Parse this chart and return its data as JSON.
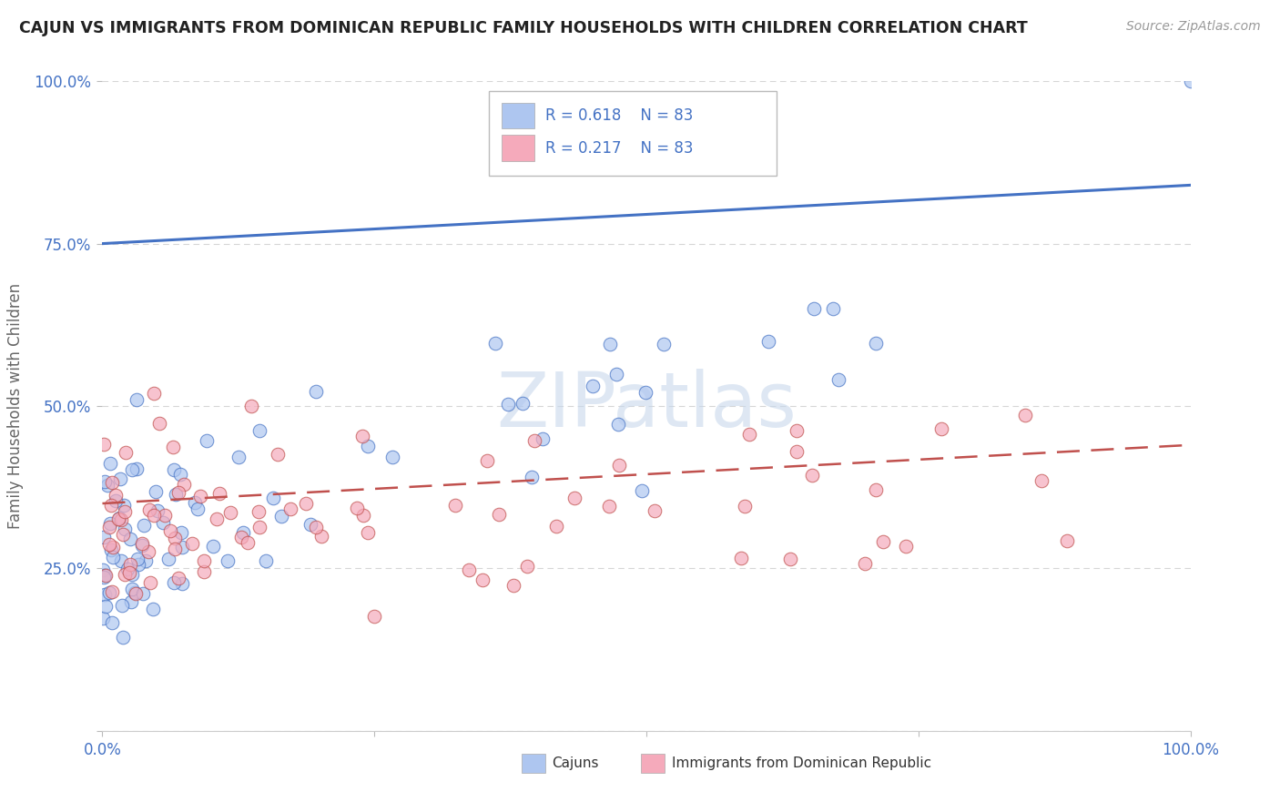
{
  "title": "CAJUN VS IMMIGRANTS FROM DOMINICAN REPUBLIC FAMILY HOUSEHOLDS WITH CHILDREN CORRELATION CHART",
  "source": "Source: ZipAtlas.com",
  "ylabel": "Family Households with Children",
  "watermark": "ZIPatlas",
  "legend1_label": "Cajuns",
  "legend2_label": "Immigrants from Dominican Republic",
  "r1": 0.618,
  "r2": 0.217,
  "n1": 83,
  "n2": 83,
  "color1": "#AEC6F0",
  "color2": "#F5AABB",
  "line1_color": "#4472C4",
  "line2_color": "#C0504D",
  "xmin": 0.0,
  "xmax": 100.0,
  "ymin": 0.0,
  "ymax": 100.0,
  "background_color": "#FFFFFF",
  "grid_color": "#CCCCCC",
  "title_color": "#222222",
  "axis_label_color": "#666666",
  "tick_color": "#4472C4",
  "watermark_color": "#C8D8EC",
  "seed": 12
}
